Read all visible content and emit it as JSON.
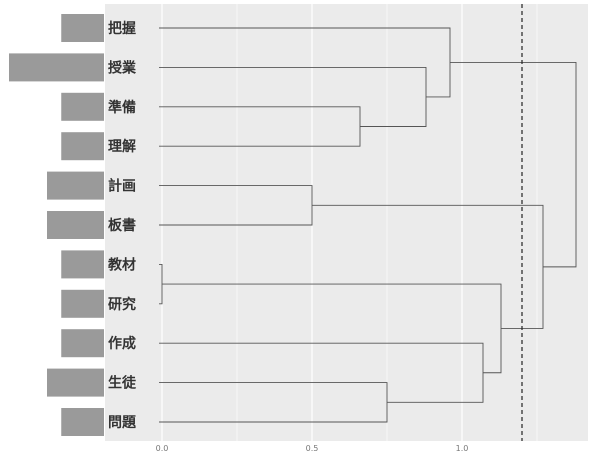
{
  "chart_data": {
    "type": "dendrogram",
    "terms": [
      "把握",
      "授業",
      "準備",
      "理解",
      "計画",
      "板書",
      "教材",
      "研究",
      "作成",
      "生徒",
      "問題"
    ],
    "frequency_bars": [
      0.45,
      1.0,
      0.45,
      0.45,
      0.6,
      0.6,
      0.45,
      0.45,
      0.45,
      0.6,
      0.45
    ],
    "x_ticks": [
      "0.0",
      "0.5",
      "1.0"
    ],
    "xlim": [
      0.0,
      1.38
    ],
    "cut_height": 1.2,
    "grid": true,
    "merges": [
      {
        "id": "m1",
        "left": "教材",
        "right": "研究",
        "height": 0.0
      },
      {
        "id": "m2",
        "left": "計画",
        "right": "板書",
        "height": 0.5
      },
      {
        "id": "m3",
        "left": "準備",
        "right": "理解",
        "height": 0.66
      },
      {
        "id": "m4",
        "left": "生徒",
        "right": "問題",
        "height": 0.75
      },
      {
        "id": "m5",
        "left": "授業",
        "right": "m3",
        "height": 0.88
      },
      {
        "id": "m6",
        "left": "把握",
        "right": "m5",
        "height": 0.96
      },
      {
        "id": "m7",
        "left": "作成",
        "right": "m4",
        "height": 1.07
      },
      {
        "id": "m8",
        "left": "m1",
        "right": "m7",
        "height": 1.13
      },
      {
        "id": "m9",
        "left": "m2",
        "right": "m8",
        "height": 1.27
      },
      {
        "id": "m10",
        "left": "m6",
        "right": "m9",
        "height": 1.38
      }
    ]
  }
}
